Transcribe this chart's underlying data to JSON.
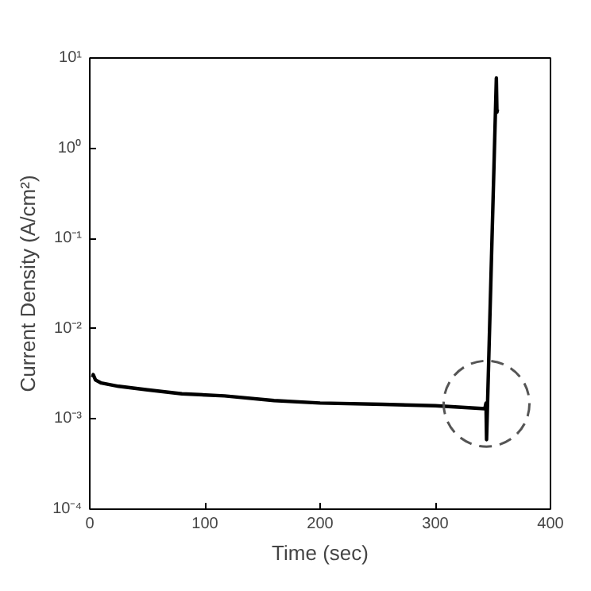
{
  "chart_data": {
    "type": "line",
    "xlabel": "Time (sec)",
    "ylabel": "Current Density (A/cm²)",
    "log": "y",
    "xlim": [
      0,
      400
    ],
    "xticks": [
      0,
      100,
      200,
      300,
      400
    ],
    "ylim": [
      0.0001,
      10
    ],
    "yticks": [
      {
        "value": 0.0001,
        "label": "10⁻⁴"
      },
      {
        "value": 0.001,
        "label": "10⁻³"
      },
      {
        "value": 0.01,
        "label": "10⁻²"
      },
      {
        "value": 0.1,
        "label": "10⁻¹"
      },
      {
        "value": 1,
        "label": "10⁰"
      },
      {
        "value": 10,
        "label": "10¹"
      }
    ],
    "grid": false,
    "marker": "none",
    "line_style": "solid",
    "series": [
      {
        "color": "#000000",
        "x": [
          2.5,
          3,
          5,
          10,
          25,
          50,
          80,
          117,
          160,
          200,
          254,
          300,
          343,
          344,
          344.5,
          345,
          353,
          353.5,
          354
        ],
        "values": [
          0.0029,
          0.0031,
          0.0027,
          0.0025,
          0.0023,
          0.0021,
          0.0019,
          0.0018,
          0.0016,
          0.0015,
          0.00145,
          0.0014,
          0.0013,
          0.0015,
          0.00059,
          0.001,
          6,
          2.5,
          2.7
        ]
      }
    ]
  }
}
